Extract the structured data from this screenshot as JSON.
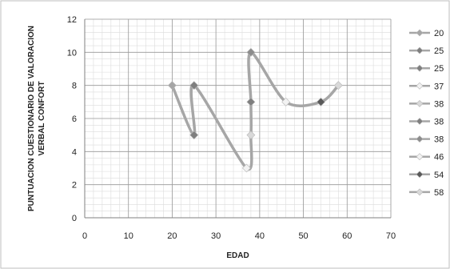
{
  "chart_data": {
    "type": "scatter",
    "title": "",
    "xlabel": "EDAD",
    "ylabel_lines": [
      "PUNTUACION CUESTIONARIO DE VALORACION",
      "VERBAL CONFORT"
    ],
    "xlim": [
      0,
      70
    ],
    "ylim": [
      0,
      12
    ],
    "x_ticks": [
      0,
      10,
      20,
      30,
      40,
      50,
      60,
      70
    ],
    "y_ticks": [
      0,
      2,
      4,
      6,
      8,
      10,
      12
    ],
    "grid": true,
    "legend_position": "right",
    "line_color": "#a6a6a6",
    "points": [
      {
        "x": 20,
        "y": 8,
        "color": "#a6a6a6"
      },
      {
        "x": 25,
        "y": 5,
        "color": "#7f7f7f"
      },
      {
        "x": 25,
        "y": 8,
        "color": "#7f7f7f"
      },
      {
        "x": 37,
        "y": 3,
        "color": "#f2f2f2"
      },
      {
        "x": 38,
        "y": 5,
        "color": "#d9d9d9"
      },
      {
        "x": 38,
        "y": 7,
        "color": "#7f7f7f"
      },
      {
        "x": 38,
        "y": 10,
        "color": "#8c8c8c"
      },
      {
        "x": 46,
        "y": 7,
        "color": "#f2f2f2"
      },
      {
        "x": 54,
        "y": 7,
        "color": "#595959"
      },
      {
        "x": 58,
        "y": 8,
        "color": "#d9d9d9"
      }
    ],
    "path_order": [
      0,
      1,
      2,
      3,
      4,
      5,
      6,
      7,
      8,
      9
    ],
    "legend": [
      {
        "label": "20",
        "color": "#a6a6a6"
      },
      {
        "label": "25",
        "color": "#7f7f7f"
      },
      {
        "label": "25",
        "color": "#7f7f7f"
      },
      {
        "label": "37",
        "color": "#f2f2f2"
      },
      {
        "label": "38",
        "color": "#d9d9d9"
      },
      {
        "label": "38",
        "color": "#7f7f7f"
      },
      {
        "label": "38",
        "color": "#8c8c8c"
      },
      {
        "label": "46",
        "color": "#f2f2f2"
      },
      {
        "label": "54",
        "color": "#595959"
      },
      {
        "label": "58",
        "color": "#d9d9d9"
      }
    ]
  }
}
